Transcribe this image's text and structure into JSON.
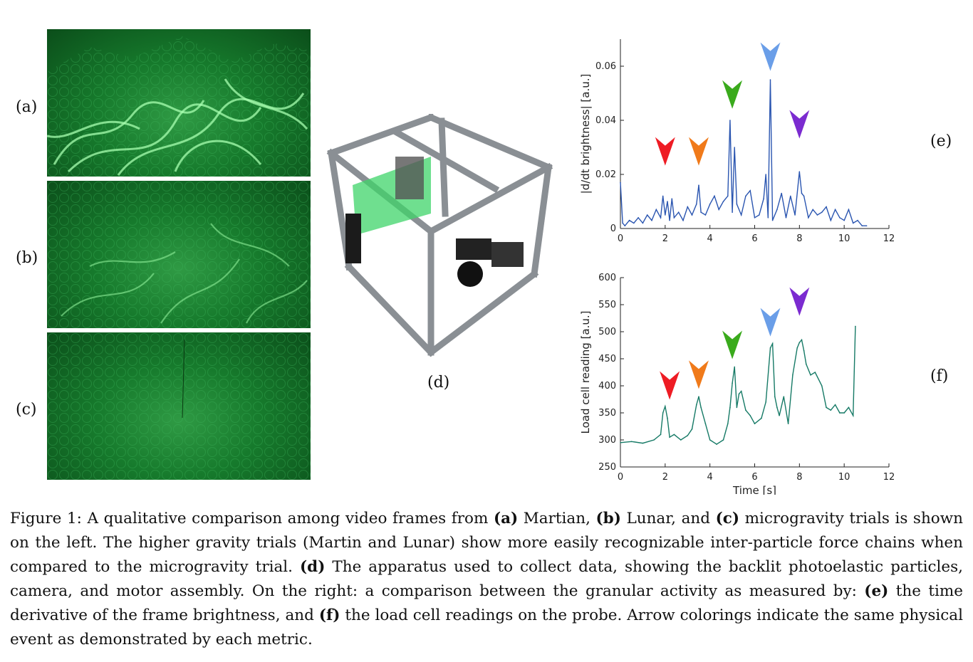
{
  "panels": {
    "a_label": "(a)",
    "b_label": "(b)",
    "c_label": "(c)",
    "d_label": "(d)",
    "e_label": "(e)",
    "f_label": "(f)"
  },
  "caption": {
    "prefix": "Figure 1: A qualitative comparison among video frames from ",
    "a_bold": "(a)",
    "a_text": " Martian, ",
    "b_bold": "(b)",
    "b_text": " Lunar, and ",
    "c_bold": "(c)",
    "c_text": " microgravity trials is shown on the left.  The higher gravity trials (Martin and Lunar) show more easily recognizable inter-particle force chains when compared to the microgravity trial. ",
    "d_bold": "(d)",
    "d_text": " The apparatus used to collect data, showing the backlit photoelastic particles, camera, and motor assembly. On the right: a comparison between the granular activity as measured by: ",
    "e_bold": "(e)",
    "e_text": " the time derivative of the frame brightness, and ",
    "f_bold": "(f)",
    "f_text": " the load cell readings on the probe. Arrow colorings indicate the same physical event as demonstrated by each metric."
  },
  "colors": {
    "arrow_red": "#ee1c24",
    "arrow_orange": "#f07a1a",
    "arrow_green": "#3aaa1c",
    "arrow_blue": "#6a9ee8",
    "arrow_purple": "#7b2bd0",
    "line_e": "#2a55b0",
    "line_f": "#167a66"
  },
  "chart_data": [
    {
      "type": "line",
      "ylabel": "|d/dt brightness| [a.u.]",
      "xlabel": "",
      "xlim": [
        0,
        12
      ],
      "ylim": [
        0,
        0.07
      ],
      "xticks": [
        "0",
        "2",
        "4",
        "6",
        "8",
        "10",
        "12"
      ],
      "yticks": [
        "0",
        "0.02",
        "0.04",
        "0.06"
      ],
      "ytick_values": [
        0,
        0.02,
        0.04,
        0.06
      ],
      "x": [
        0,
        0.1,
        0.2,
        0.4,
        0.6,
        0.8,
        1.0,
        1.2,
        1.4,
        1.6,
        1.8,
        1.9,
        2.0,
        2.1,
        2.2,
        2.3,
        2.4,
        2.6,
        2.8,
        3.0,
        3.2,
        3.4,
        3.5,
        3.6,
        3.8,
        4.0,
        4.2,
        4.4,
        4.6,
        4.8,
        4.9,
        5.0,
        5.1,
        5.2,
        5.4,
        5.6,
        5.8,
        6.0,
        6.2,
        6.4,
        6.5,
        6.6,
        6.7,
        6.8,
        7.0,
        7.2,
        7.4,
        7.6,
        7.8,
        8.0,
        8.1,
        8.2,
        8.4,
        8.6,
        8.8,
        9.0,
        9.2,
        9.4,
        9.6,
        9.8,
        10.0,
        10.2,
        10.4,
        10.6,
        10.8,
        11.0
      ],
      "y": [
        0.017,
        0.002,
        0.001,
        0.003,
        0.002,
        0.004,
        0.002,
        0.005,
        0.003,
        0.007,
        0.004,
        0.012,
        0.005,
        0.01,
        0.003,
        0.011,
        0.004,
        0.006,
        0.003,
        0.008,
        0.005,
        0.009,
        0.016,
        0.006,
        0.005,
        0.009,
        0.012,
        0.007,
        0.01,
        0.012,
        0.04,
        0.006,
        0.03,
        0.009,
        0.005,
        0.012,
        0.014,
        0.004,
        0.005,
        0.011,
        0.02,
        0.004,
        0.055,
        0.003,
        0.007,
        0.013,
        0.004,
        0.012,
        0.005,
        0.021,
        0.013,
        0.012,
        0.004,
        0.007,
        0.005,
        0.006,
        0.008,
        0.003,
        0.007,
        0.004,
        0.003,
        0.007,
        0.002,
        0.003,
        0.001,
        0.001
      ],
      "arrows": [
        {
          "x": 2.0,
          "y": 0.028,
          "color": "#ee1c24"
        },
        {
          "x": 3.5,
          "y": 0.028,
          "color": "#f07a1a"
        },
        {
          "x": 5.0,
          "y": 0.049,
          "color": "#3aaa1c"
        },
        {
          "x": 6.7,
          "y": 0.063,
          "color": "#6a9ee8"
        },
        {
          "x": 8.0,
          "y": 0.038,
          "color": "#7b2bd0"
        }
      ]
    },
    {
      "type": "line",
      "ylabel": "Load cell reading [a.u.]",
      "xlabel": "Time [s]",
      "xlim": [
        0,
        12
      ],
      "ylim": [
        250,
        600
      ],
      "xticks": [
        "0",
        "2",
        "4",
        "6",
        "8",
        "10",
        "12"
      ],
      "yticks": [
        "250",
        "300",
        "350",
        "400",
        "450",
        "500",
        "550",
        "600"
      ],
      "ytick_values": [
        250,
        300,
        350,
        400,
        450,
        500,
        550,
        600
      ],
      "x": [
        0,
        0.5,
        1.0,
        1.5,
        1.8,
        1.9,
        2.0,
        2.1,
        2.2,
        2.4,
        2.7,
        3.0,
        3.2,
        3.4,
        3.5,
        3.6,
        3.8,
        4.0,
        4.3,
        4.6,
        4.8,
        4.9,
        5.0,
        5.1,
        5.2,
        5.3,
        5.4,
        5.6,
        5.8,
        6.0,
        6.3,
        6.5,
        6.7,
        6.8,
        6.9,
        7.0,
        7.1,
        7.3,
        7.5,
        7.7,
        7.9,
        8.0,
        8.1,
        8.2,
        8.3,
        8.5,
        8.7,
        9.0,
        9.2,
        9.4,
        9.6,
        9.8,
        10.0,
        10.2,
        10.4,
        10.5
      ],
      "y": [
        295,
        297,
        294,
        300,
        310,
        350,
        362,
        340,
        305,
        310,
        300,
        308,
        320,
        365,
        380,
        360,
        330,
        300,
        292,
        300,
        330,
        360,
        405,
        435,
        360,
        385,
        390,
        355,
        345,
        330,
        340,
        370,
        470,
        478,
        380,
        360,
        345,
        380,
        330,
        420,
        470,
        480,
        485,
        465,
        440,
        420,
        425,
        400,
        360,
        355,
        365,
        350,
        350,
        360,
        345,
        510
      ],
      "arrows": [
        {
          "x": 2.2,
          "y": 398,
          "color": "#ee1c24"
        },
        {
          "x": 3.5,
          "y": 418,
          "color": "#f07a1a"
        },
        {
          "x": 5.0,
          "y": 473,
          "color": "#3aaa1c"
        },
        {
          "x": 6.7,
          "y": 515,
          "color": "#6a9ee8"
        },
        {
          "x": 8.0,
          "y": 553,
          "color": "#7b2bd0"
        }
      ]
    }
  ]
}
